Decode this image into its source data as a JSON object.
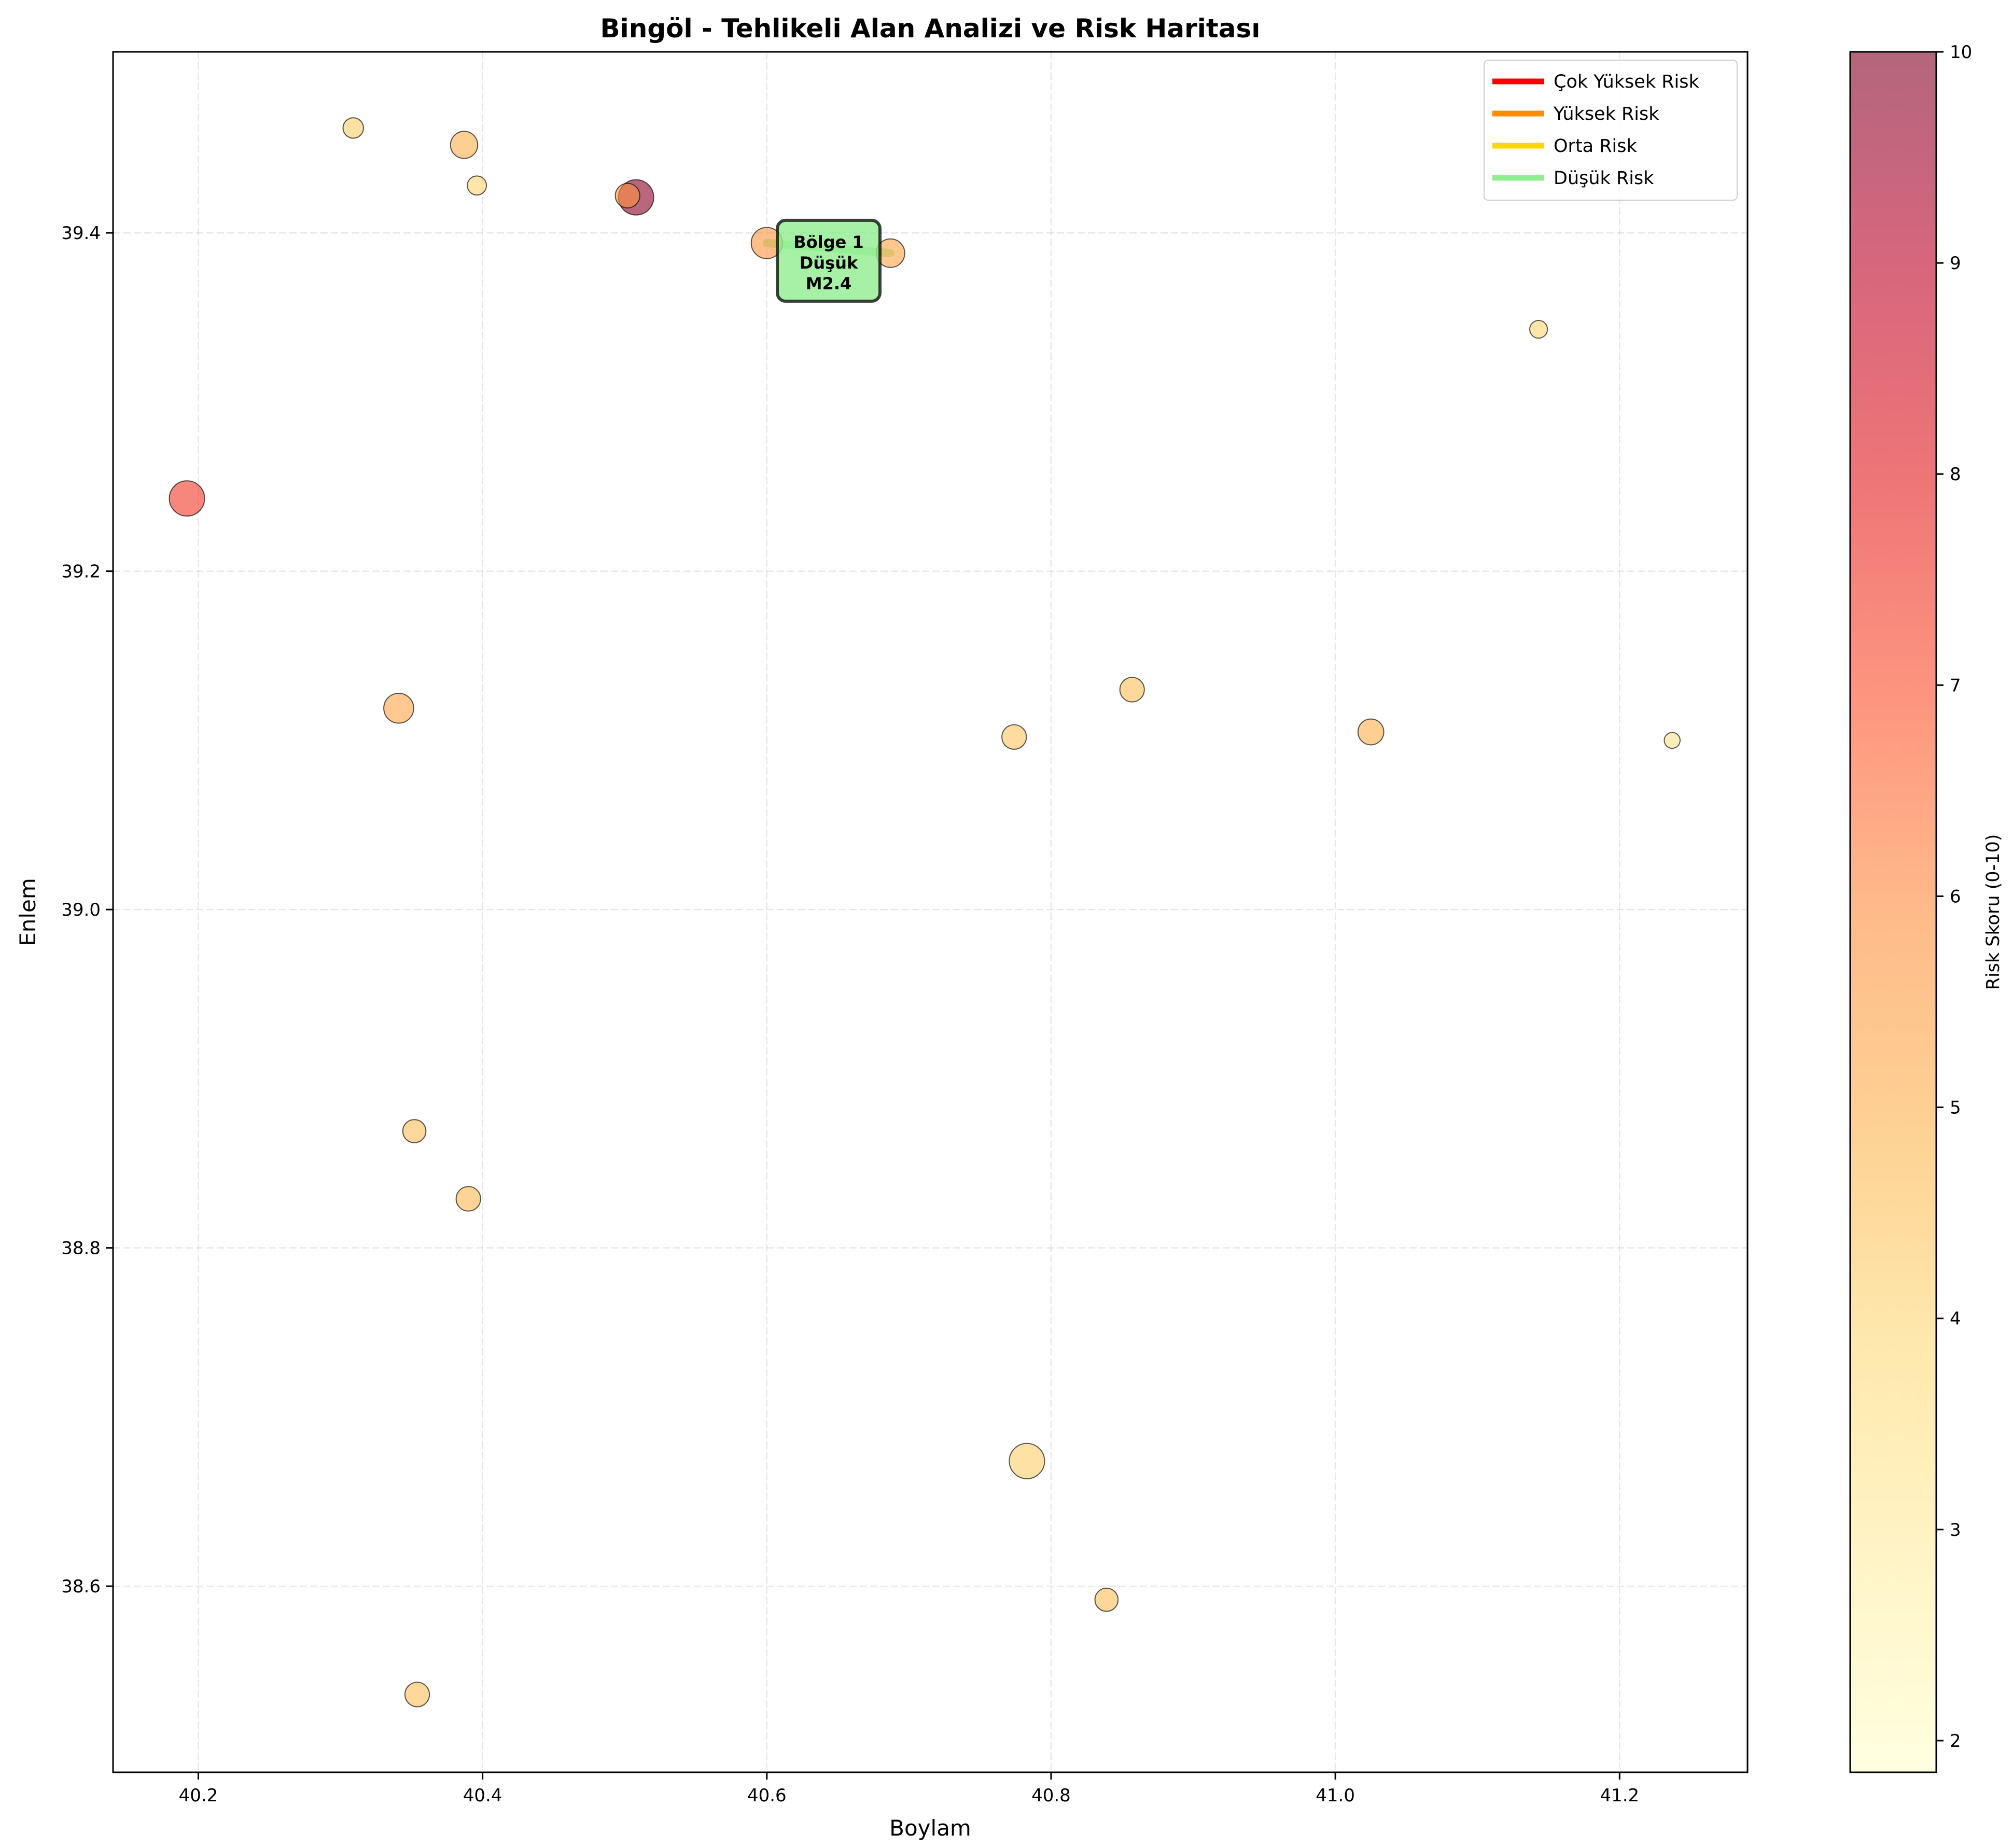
{
  "chart_data": {
    "type": "scatter",
    "title": "Bingöl - Tehlikeli Alan Analizi ve Risk Haritası",
    "xlabel": "Boylam",
    "ylabel": "Enlem",
    "xlim": [
      40.14,
      41.29
    ],
    "ylim": [
      38.49,
      39.507
    ],
    "xticks": [
      "40.2",
      "40.4",
      "40.6",
      "40.8",
      "41.0",
      "41.2"
    ],
    "yticks": [
      "38.6",
      "38.8",
      "39.0",
      "39.2",
      "39.4"
    ],
    "grid": true,
    "colorbar": {
      "label": "Risk Skoru (0-10)",
      "min": 1.85,
      "max": 10,
      "ticks": [
        "2",
        "3",
        "4",
        "5",
        "6",
        "7",
        "8",
        "9",
        "10"
      ],
      "colormap": "YlOrRd"
    },
    "legend": {
      "placement": "top-right",
      "entries": [
        {
          "label": "Çok Yüksek Risk",
          "color": "#ff0000"
        },
        {
          "label": "Yüksek Risk",
          "color": "#ff8c00"
        },
        {
          "label": "Orta Risk",
          "color": "#ffd700"
        },
        {
          "label": "Düşük Risk",
          "color": "#90ee90"
        }
      ]
    },
    "points": [
      {
        "x": 40.309,
        "y": 39.462,
        "size": 4.5,
        "risk": 4.2
      },
      {
        "x": 40.387,
        "y": 39.452,
        "size": 7.0,
        "risk": 5.0
      },
      {
        "x": 40.396,
        "y": 39.428,
        "size": 4.0,
        "risk": 4.0
      },
      {
        "x": 40.508,
        "y": 39.421,
        "size": 10.0,
        "risk": 9.8
      },
      {
        "x": 40.502,
        "y": 39.422,
        "size": 6.0,
        "risk": 5.8
      },
      {
        "x": 40.6,
        "y": 39.394,
        "size": 8.5,
        "risk": 5.8
      },
      {
        "x": 40.687,
        "y": 39.388,
        "size": 7.5,
        "risk": 5.3
      },
      {
        "x": 41.143,
        "y": 39.343,
        "size": 3.5,
        "risk": 4.0
      },
      {
        "x": 40.192,
        "y": 39.243,
        "size": 10.0,
        "risk": 7.4
      },
      {
        "x": 40.341,
        "y": 39.119,
        "size": 8.0,
        "risk": 5.3
      },
      {
        "x": 40.857,
        "y": 39.13,
        "size": 6.0,
        "risk": 4.6
      },
      {
        "x": 40.774,
        "y": 39.102,
        "size": 6.0,
        "risk": 4.4
      },
      {
        "x": 41.025,
        "y": 39.105,
        "size": 6.5,
        "risk": 5.0
      },
      {
        "x": 41.237,
        "y": 39.1,
        "size": 2.8,
        "risk": 3.4
      },
      {
        "x": 40.352,
        "y": 38.869,
        "size": 5.5,
        "risk": 4.6
      },
      {
        "x": 40.39,
        "y": 38.829,
        "size": 6.0,
        "risk": 4.8
      },
      {
        "x": 40.783,
        "y": 38.674,
        "size": 10.0,
        "risk": 4.2
      },
      {
        "x": 40.839,
        "y": 38.592,
        "size": 5.5,
        "risk": 4.6
      },
      {
        "x": 40.354,
        "y": 38.536,
        "size": 6.0,
        "risk": 4.6
      }
    ],
    "zone_lines": [
      {
        "x": [
          40.6,
          40.687
        ],
        "y": [
          39.394,
          39.388
        ],
        "risk_level": "Düşük Risk",
        "color": "#90ee90"
      }
    ],
    "annotations": [
      {
        "lines": [
          "Bölge 1",
          "Düşük",
          "M2.4"
        ],
        "x": 40.6435,
        "y": 39.3835,
        "box_color": "#90ee90"
      }
    ]
  }
}
